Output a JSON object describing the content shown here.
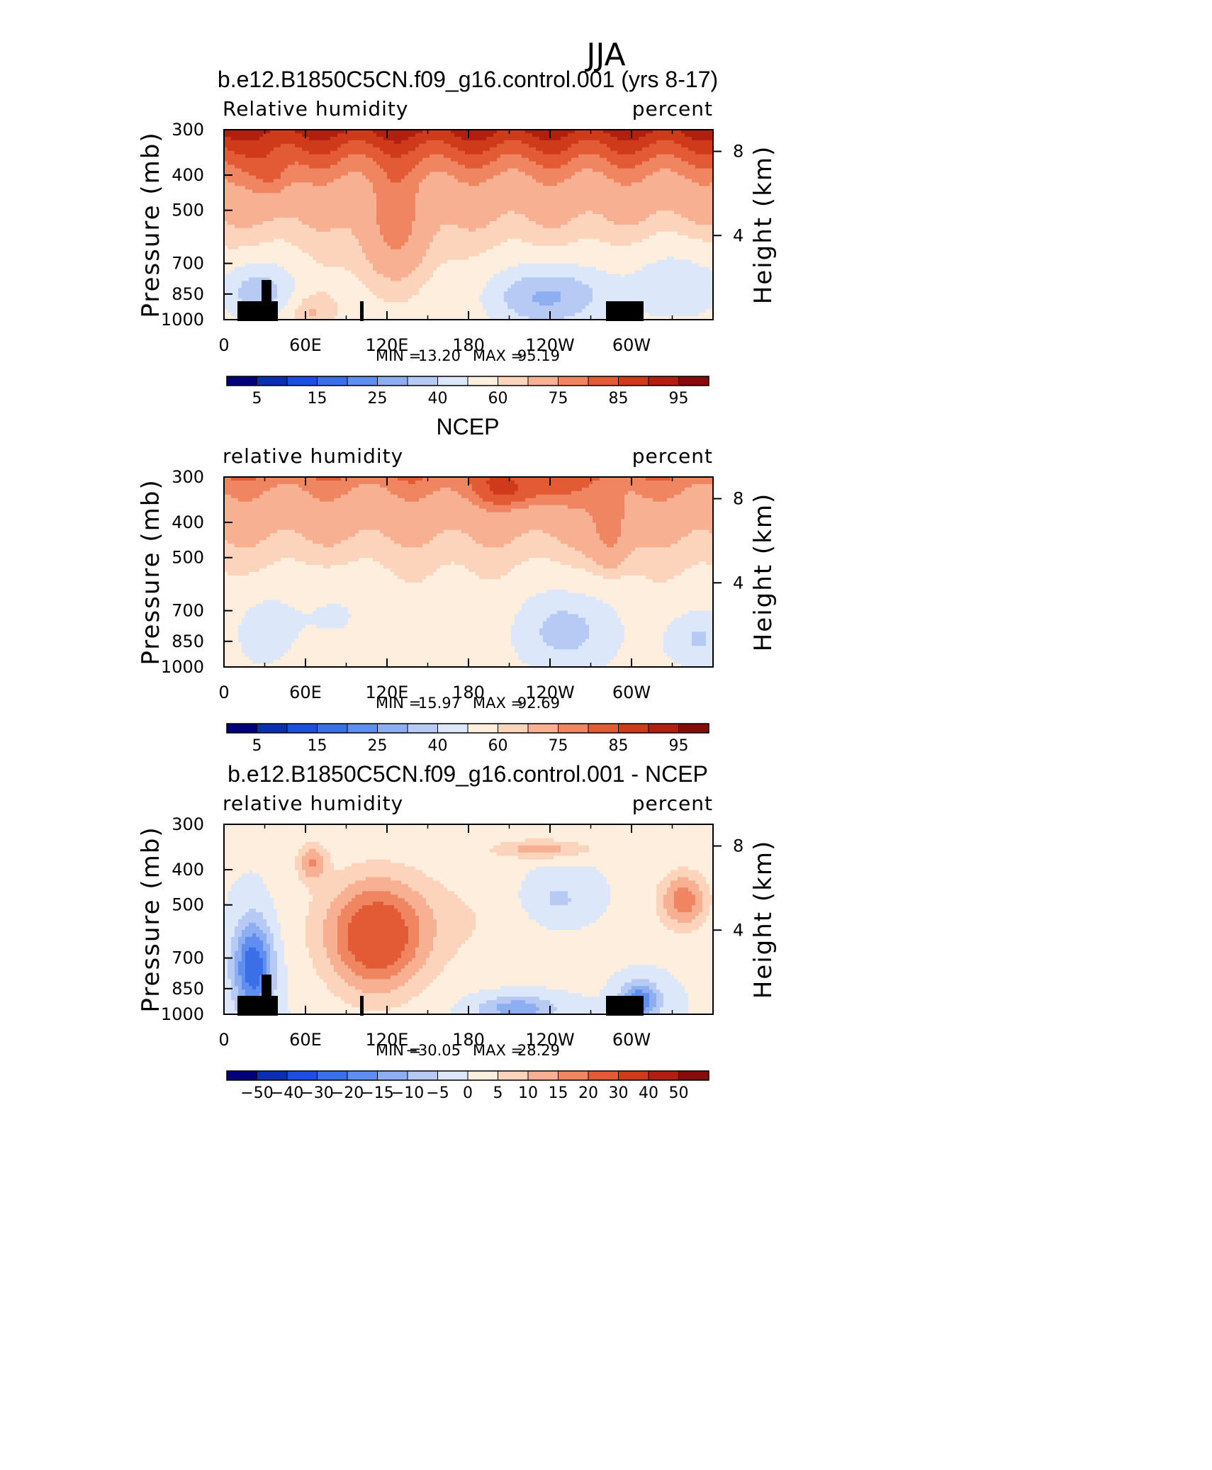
{
  "figure": {
    "title": "JJA"
  },
  "chart_data": [
    {
      "type": "heatmap",
      "title": "b.e12.B1850C5CN.f09_g16.control.001 (yrs 8-17)",
      "left_label": "Relative humidity",
      "right_label": "percent",
      "ylabel": "Pressure (mb)",
      "y2label": "Height (km)",
      "x_ticks": [
        "0",
        "60E",
        "120E",
        "180",
        "120W",
        "60W"
      ],
      "y_ticks": [
        "300",
        "400",
        "500",
        "700",
        "850",
        "1000"
      ],
      "y2_ticks": [
        "8",
        "4"
      ],
      "min_label": "MIN =",
      "min_value": "13.20",
      "max_label": "MAX =",
      "max_value": "95.19",
      "colorbar": [
        "5",
        "15",
        "25",
        "40",
        "60",
        "75",
        "85",
        "95"
      ],
      "field": "model_rh"
    },
    {
      "type": "heatmap",
      "title": "NCEP",
      "left_label": "relative humidity",
      "right_label": "percent",
      "ylabel": "Pressure (mb)",
      "y2label": "Height (km)",
      "x_ticks": [
        "0",
        "60E",
        "120E",
        "180",
        "120W",
        "60W"
      ],
      "y_ticks": [
        "300",
        "400",
        "500",
        "700",
        "850",
        "1000"
      ],
      "y2_ticks": [
        "8",
        "4"
      ],
      "min_label": "MIN =",
      "min_value": "15.97",
      "max_label": "MAX =",
      "max_value": "92.69",
      "colorbar": [
        "5",
        "15",
        "25",
        "40",
        "60",
        "75",
        "85",
        "95"
      ],
      "field": "ncep_rh"
    },
    {
      "type": "heatmap",
      "title": "b.e12.B1850C5CN.f09_g16.control.001 - NCEP",
      "left_label": "relative humidity",
      "right_label": "percent",
      "ylabel": "Pressure (mb)",
      "y2label": "Height (km)",
      "x_ticks": [
        "0",
        "60E",
        "120E",
        "180",
        "120W",
        "60W"
      ],
      "y_ticks": [
        "300",
        "400",
        "500",
        "700",
        "850",
        "1000"
      ],
      "y2_ticks": [
        "8",
        "4"
      ],
      "min_label": "MIN =",
      "min_value": "−30.05",
      "max_label": "MAX =",
      "max_value": "28.29",
      "colorbar": [
        "−50",
        "−40",
        "−30",
        "−20",
        "−15",
        "−10",
        "−5",
        "0",
        "5",
        "10",
        "15",
        "20",
        "30",
        "40",
        "50"
      ],
      "field": "diff_rh"
    }
  ],
  "palette": [
    "#00007a",
    "#0b2fb3",
    "#1c4fe0",
    "#3a6fe8",
    "#5f8ef0",
    "#8eaef2",
    "#b6caf4",
    "#dce7fa",
    "#fdeedd",
    "#fbd4bb",
    "#f7b092",
    "#f08562",
    "#e35b35",
    "#cf3a1b",
    "#b01f10",
    "#850c08"
  ]
}
